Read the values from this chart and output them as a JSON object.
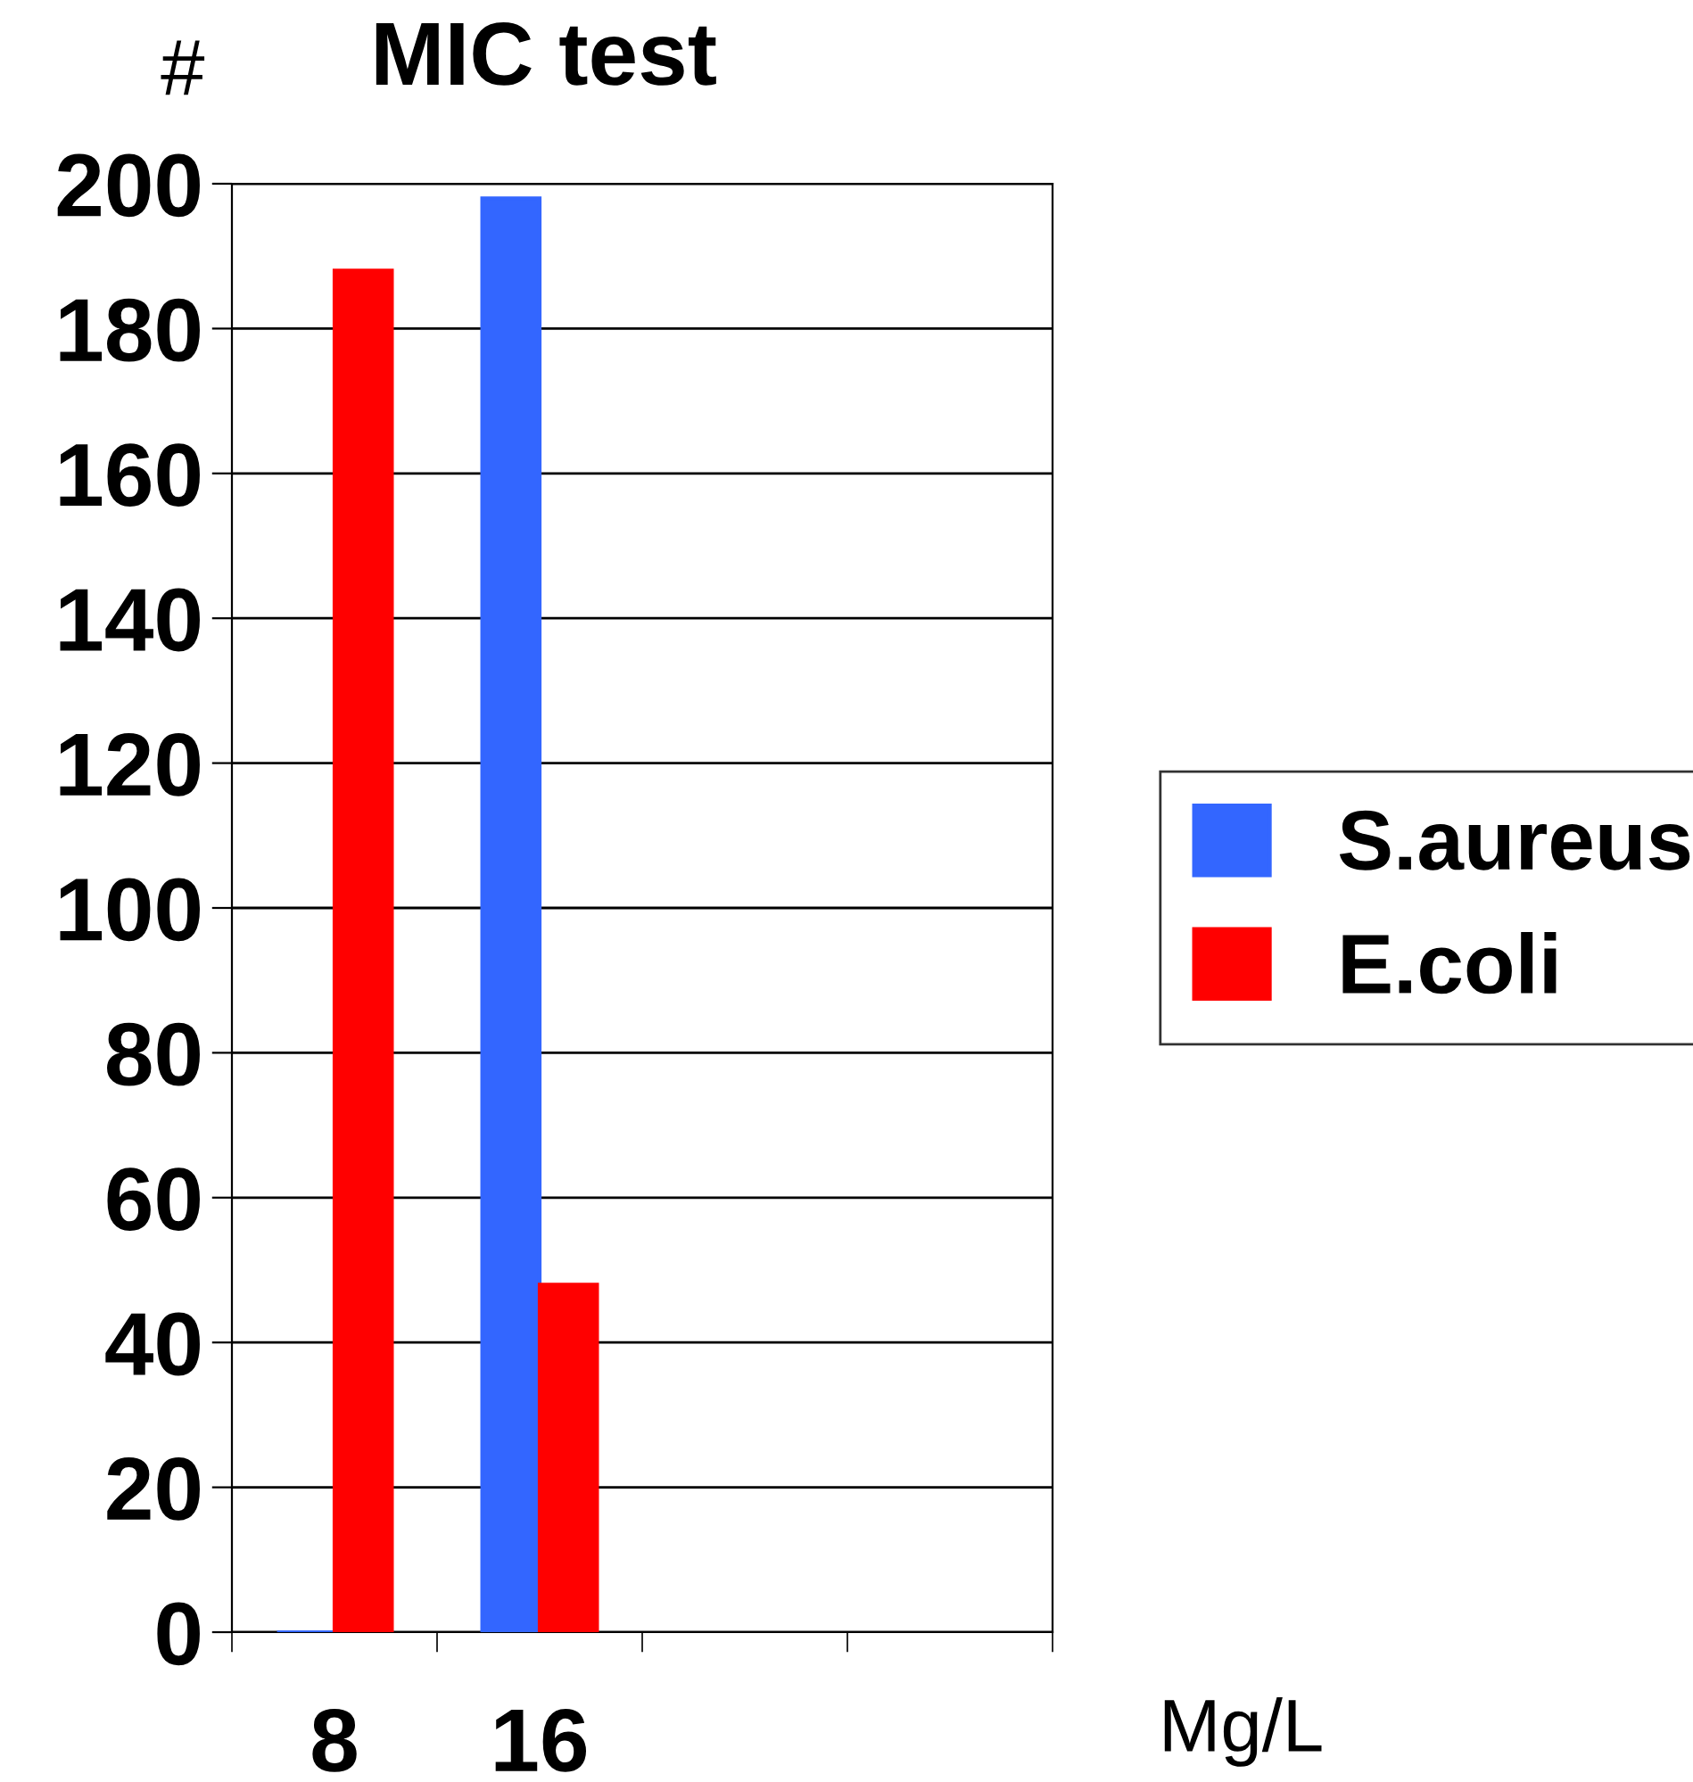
{
  "chart_data": {
    "type": "bar",
    "title": "MIC test",
    "ylabel": "#",
    "xlabel": "Mg/L",
    "categories": [
      "8",
      "16",
      null,
      null
    ],
    "series": [
      {
        "name": "S.aureus",
        "color": "#3366ff",
        "values": [
          0,
          198,
          null,
          null
        ]
      },
      {
        "name": "E.coli",
        "color": "#ff0000",
        "values": [
          188,
          48,
          null,
          null
        ]
      }
    ],
    "ylim": [
      0,
      200
    ],
    "yticks": [
      0,
      20,
      40,
      60,
      80,
      100,
      120,
      140,
      160,
      180,
      200
    ],
    "grid": "y",
    "legend": "right"
  }
}
